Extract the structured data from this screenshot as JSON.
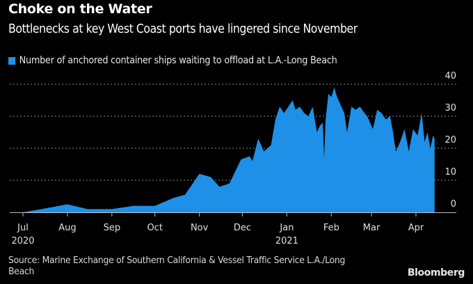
{
  "header": {
    "title": "Choke on the Water",
    "subtitle": "Bottlenecks at key West Coast ports have lingered since November"
  },
  "legend": {
    "label": "Number of anchored container ships waiting to offload at L.A.-Long Beach",
    "color": "#1e90e8"
  },
  "footer": {
    "source": "Source: Marine Exchange of Southern California & Vessel Traffic Service L.A./Long Beach",
    "brand": "Bloomberg"
  },
  "chart_data": {
    "type": "area",
    "title": "Choke on the Water",
    "subtitle": "Bottlenecks at key West Coast ports have lingered since November",
    "xlabel": "",
    "ylabel": "",
    "x_unit": "days since 2020-07-01",
    "xlim": [
      -12,
      300
    ],
    "ylim": [
      0,
      40
    ],
    "y_ticks": [
      0,
      10,
      20,
      30,
      40
    ],
    "y_axis_side": "right",
    "grid": "horizontal dotted",
    "x_ticks": [
      {
        "day": 0,
        "label": "Jul",
        "year": "2020"
      },
      {
        "day": 31,
        "label": "Aug",
        "year": ""
      },
      {
        "day": 62,
        "label": "Sep",
        "year": ""
      },
      {
        "day": 92,
        "label": "Oct",
        "year": ""
      },
      {
        "day": 123,
        "label": "Nov",
        "year": ""
      },
      {
        "day": 153,
        "label": "Dec",
        "year": ""
      },
      {
        "day": 184,
        "label": "Jan",
        "year": "2021"
      },
      {
        "day": 215,
        "label": "Feb",
        "year": ""
      },
      {
        "day": 243,
        "label": "Mar",
        "year": ""
      },
      {
        "day": 274,
        "label": "Apr",
        "year": ""
      }
    ],
    "series": [
      {
        "name": "Number of anchored container ships waiting to offload at L.A.-Long Beach",
        "color": "#1e90e8",
        "x": [
          0,
          13,
          31,
          45,
          62,
          77,
          92,
          105,
          113,
          123,
          131,
          137,
          144,
          152,
          158,
          160,
          164,
          168,
          173,
          176,
          179,
          182,
          185,
          188,
          190,
          193,
          196,
          199,
          202,
          205,
          207,
          209,
          210,
          211,
          213,
          215,
          217,
          219,
          222,
          224,
          226,
          229,
          232,
          235,
          238,
          240,
          244,
          247,
          250,
          253,
          256,
          258,
          260,
          263,
          266,
          269,
          272,
          275,
          276,
          278,
          280,
          282,
          284,
          286,
          287
        ],
        "values": [
          0,
          1,
          2.5,
          1,
          1,
          2,
          2,
          4.5,
          5.5,
          12,
          11,
          8,
          9,
          16.5,
          17.5,
          16,
          23,
          19,
          21,
          29,
          33,
          31,
          33,
          35,
          32,
          33,
          31,
          30,
          33,
          25,
          27,
          28,
          17,
          29,
          37,
          36,
          39,
          36,
          33,
          31,
          25,
          33,
          32,
          33,
          31,
          30,
          26,
          32,
          31,
          29,
          30,
          25,
          19,
          22,
          26,
          19,
          26,
          24,
          26,
          31,
          22,
          25,
          20,
          24,
          23
        ]
      }
    ]
  }
}
